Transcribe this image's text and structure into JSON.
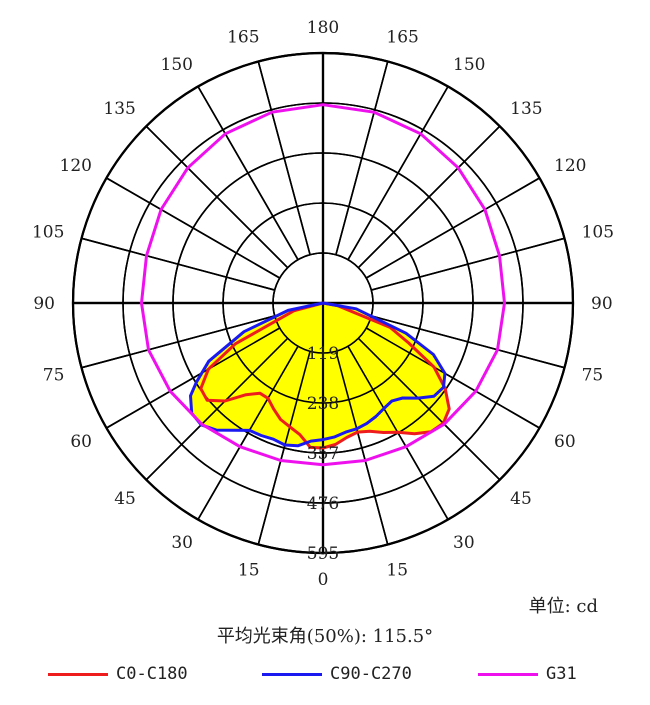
{
  "chart_data": {
    "type": "polar",
    "angle_labels_right": [
      "0",
      "15",
      "30",
      "45",
      "60",
      "75",
      "90",
      "105",
      "120",
      "135",
      "150",
      "165",
      "180"
    ],
    "angle_labels_left": [
      "15",
      "30",
      "45",
      "60",
      "75",
      "90",
      "105",
      "120",
      "135",
      "150",
      "165"
    ],
    "radial_ticks": [
      119,
      238,
      357,
      476,
      595
    ],
    "r_max": 595,
    "series": [
      {
        "name": "C0-C180",
        "color": "#ee1c1c",
        "points": [
          [
            -90,
            0
          ],
          [
            -75,
            72
          ],
          [
            -65,
            230
          ],
          [
            -60,
            315
          ],
          [
            -55,
            355
          ],
          [
            -50,
            360
          ],
          [
            -45,
            330
          ],
          [
            -40,
            285
          ],
          [
            -35,
            262
          ],
          [
            -30,
            262
          ],
          [
            -25,
            278
          ],
          [
            -20,
            295
          ],
          [
            -15,
            305
          ],
          [
            -10,
            318
          ],
          [
            -5,
            345
          ],
          [
            0,
            345
          ],
          [
            5,
            338
          ],
          [
            10,
            325
          ],
          [
            15,
            318
          ],
          [
            20,
            325
          ],
          [
            25,
            340
          ],
          [
            30,
            355
          ],
          [
            35,
            380
          ],
          [
            40,
            400
          ],
          [
            45,
            405
          ],
          [
            50,
            392
          ],
          [
            55,
            355
          ],
          [
            60,
            305
          ],
          [
            65,
            225
          ],
          [
            70,
            170
          ],
          [
            80,
            35
          ],
          [
            90,
            0
          ]
        ]
      },
      {
        "name": "C90-C270",
        "color": "#1a1af0",
        "points": [
          [
            -90,
            0
          ],
          [
            -78,
            85
          ],
          [
            -70,
            200
          ],
          [
            -63,
            305
          ],
          [
            -58,
            355
          ],
          [
            -55,
            385
          ],
          [
            -50,
            408
          ],
          [
            -45,
            410
          ],
          [
            -40,
            395
          ],
          [
            -35,
            370
          ],
          [
            -30,
            350
          ],
          [
            -25,
            348
          ],
          [
            -20,
            345
          ],
          [
            -15,
            350
          ],
          [
            -10,
            345
          ],
          [
            -5,
            330
          ],
          [
            0,
            325
          ],
          [
            5,
            320
          ],
          [
            10,
            312
          ],
          [
            15,
            310
          ],
          [
            20,
            305
          ],
          [
            25,
            298
          ],
          [
            30,
            290
          ],
          [
            35,
            285
          ],
          [
            40,
            295
          ],
          [
            45,
            320
          ],
          [
            50,
            345
          ],
          [
            55,
            350
          ],
          [
            60,
            335
          ],
          [
            65,
            290
          ],
          [
            70,
            210
          ],
          [
            80,
            80
          ],
          [
            90,
            0
          ]
        ]
      },
      {
        "name": "G31",
        "color": "#ee11ee",
        "points": [
          [
            0,
            385
          ],
          [
            15,
            388
          ],
          [
            30,
            395
          ],
          [
            45,
            408
          ],
          [
            60,
            420
          ],
          [
            75,
            430
          ],
          [
            90,
            432
          ],
          [
            105,
            435
          ],
          [
            120,
            445
          ],
          [
            135,
            455
          ],
          [
            150,
            465
          ],
          [
            165,
            470
          ],
          [
            180,
            472
          ],
          [
            195,
            470
          ],
          [
            210,
            465
          ],
          [
            225,
            455
          ],
          [
            240,
            445
          ],
          [
            255,
            435
          ],
          [
            270,
            432
          ],
          [
            285,
            430
          ],
          [
            300,
            420
          ],
          [
            315,
            408
          ],
          [
            330,
            395
          ],
          [
            345,
            388
          ],
          [
            360,
            385
          ]
        ]
      }
    ],
    "fill_color": "#ffff00"
  },
  "unit_text": "单位: cd",
  "beam_angle_text": "平均光束角(50%): 115.5°",
  "legend": [
    {
      "name": "C0-C180",
      "color": "#ee1c1c"
    },
    {
      "name": "C90-C270",
      "color": "#1a1af0"
    },
    {
      "name": "G31",
      "color": "#ee11ee"
    }
  ]
}
